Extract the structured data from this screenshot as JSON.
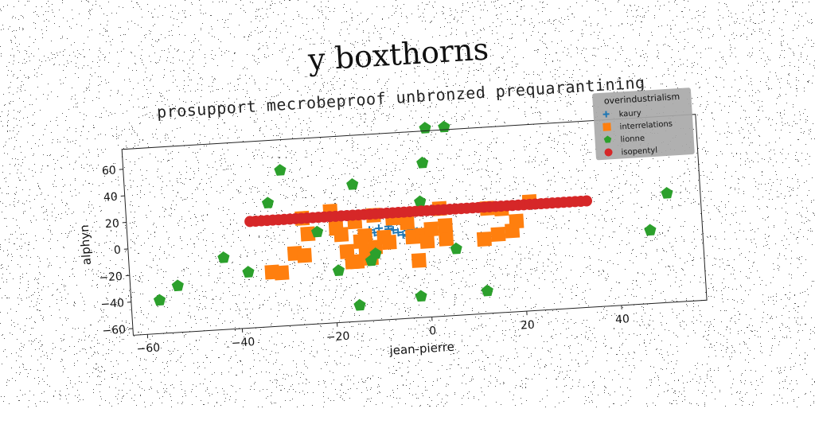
{
  "chart_data": {
    "type": "scatter",
    "title": "y boxthorns",
    "subtitle": "prosupport mecrobeproof unbronzed prequarantining",
    "xlabel": "jean-pierre",
    "ylabel": "alphyn",
    "xlim": [
      -63,
      58
    ],
    "ylim": [
      -65,
      75
    ],
    "xticks": [
      -60,
      -40,
      -20,
      0,
      20,
      40
    ],
    "yticks": [
      -60,
      -40,
      -20,
      0,
      20,
      40,
      60
    ],
    "grid": false,
    "legend": {
      "title": "overindustrialism",
      "placement": "top-right"
    },
    "series": [
      {
        "name": "kaury",
        "marker": "plus",
        "color": "#1f77b4",
        "points": [
          [
            -12,
            3
          ],
          [
            -10,
            4
          ],
          [
            -8,
            5
          ],
          [
            -7,
            2
          ],
          [
            -9,
            -1
          ],
          [
            -11,
            1
          ],
          [
            -5,
            -2
          ],
          [
            -4,
            -3
          ],
          [
            -3,
            -1
          ],
          [
            -2,
            0
          ],
          [
            -1,
            -2
          ],
          [
            -6,
            0
          ],
          [
            -8,
            3
          ],
          [
            -10,
            -1
          ],
          [
            -3,
            2
          ],
          [
            -2,
            -4
          ],
          [
            0,
            -1
          ],
          [
            -4,
            1
          ]
        ]
      },
      {
        "name": "interrelations",
        "marker": "square",
        "color": "#ff7f0e",
        "points": [
          [
            -33,
            -24
          ],
          [
            -31,
            -25
          ],
          [
            -28,
            -11
          ],
          [
            -26,
            -13
          ],
          [
            -26,
            15
          ],
          [
            -25,
            3
          ],
          [
            -20,
            19
          ],
          [
            -19,
            6
          ],
          [
            -18,
            1
          ],
          [
            -17,
            -12
          ],
          [
            -16,
            -20
          ],
          [
            -15,
            -20
          ],
          [
            -15,
            10
          ],
          [
            -14,
            -5
          ],
          [
            -13,
            -1
          ],
          [
            -13,
            -12
          ],
          [
            -12,
            -18
          ],
          [
            -11,
            14
          ],
          [
            -11,
            -10
          ],
          [
            -9,
            -3
          ],
          [
            -8,
            -7
          ],
          [
            -7,
            11
          ],
          [
            -5,
            13
          ],
          [
            -4,
            7
          ],
          [
            -3,
            -4
          ],
          [
            -2,
            -22
          ],
          [
            -1,
            -3
          ],
          [
            0,
            -8
          ],
          [
            1,
            1
          ],
          [
            3,
            16
          ],
          [
            4,
            -7
          ],
          [
            4,
            3
          ],
          [
            12,
            -9
          ],
          [
            13,
            14
          ],
          [
            15,
            -6
          ],
          [
            16,
            13
          ],
          [
            18,
            -4
          ],
          [
            19,
            3
          ],
          [
            22,
            17
          ]
        ]
      },
      {
        "name": "lionne",
        "marker": "pentagon",
        "color": "#2ca02c",
        "points": [
          [
            -57,
            -40
          ],
          [
            -53,
            -30
          ],
          [
            -43,
            -11
          ],
          [
            -38,
            -23
          ],
          [
            -33,
            28
          ],
          [
            -30,
            52
          ],
          [
            -23,
            4
          ],
          [
            -19,
            -26
          ],
          [
            -15,
            38
          ],
          [
            -15,
            -53
          ],
          [
            -12,
            -20
          ],
          [
            -11,
            -15
          ],
          [
            -2,
            -49
          ],
          [
            -1,
            22
          ],
          [
            0,
            51
          ],
          [
            1,
            77
          ],
          [
            5,
            77
          ],
          [
            6,
            -15
          ],
          [
            12,
            -48
          ],
          [
            47,
            -10
          ],
          [
            51,
            17
          ]
        ]
      },
      {
        "name": "isopentyl",
        "marker": "circle",
        "color": "#d62728",
        "x_start": -37,
        "x_end": 34,
        "count": 60,
        "y": 15
      }
    ]
  }
}
